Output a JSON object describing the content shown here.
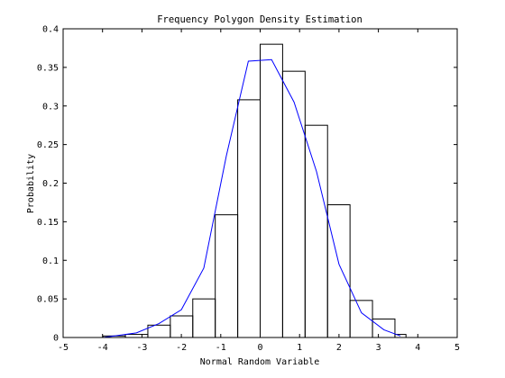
{
  "chart_data": {
    "type": "bar",
    "title": "Frequency Polygon Density Estimation",
    "xlabel": "Normal Random Variable",
    "ylabel": "Probability",
    "xlim": [
      -5,
      5
    ],
    "ylim": [
      0,
      0.4
    ],
    "xticks": [
      "-5",
      "-4",
      "-3",
      "-2",
      "-1",
      "0",
      "1",
      "2",
      "3",
      "4",
      "5"
    ],
    "yticks": [
      "0",
      "0.05",
      "0.1",
      "0.15",
      "0.2",
      "0.25",
      "0.3",
      "0.35",
      "0.4"
    ],
    "grid": false,
    "histogram": {
      "bin_edges": [
        -3.99,
        -3.42,
        -2.85,
        -2.28,
        -1.71,
        -1.14,
        -0.57,
        0.0,
        0.57,
        1.14,
        1.71,
        2.28,
        2.85,
        3.42
      ],
      "heights": [
        0.002,
        0.004,
        0.016,
        0.028,
        0.05,
        0.159,
        0.308,
        0.38,
        0.345,
        0.275,
        0.172,
        0.048,
        0.024,
        0.004
      ],
      "bin_starts": [
        -3.99,
        -3.42,
        -2.85,
        -2.28,
        -1.71,
        -1.14,
        -0.57,
        0.0,
        0.57,
        1.14,
        1.71,
        2.28,
        2.85,
        3.42
      ],
      "bin_ends": [
        -3.42,
        -2.85,
        -2.28,
        -1.71,
        -1.14,
        -0.57,
        0.0,
        0.57,
        1.14,
        1.71,
        2.28,
        2.85,
        3.42,
        3.7
      ]
    },
    "polygon": {
      "color": "#0000ff",
      "x": [
        -3.99,
        -3.7,
        -3.14,
        -2.57,
        -2.0,
        -1.43,
        -0.86,
        -0.3,
        0.29,
        0.86,
        1.43,
        2.0,
        2.57,
        3.14,
        3.56
      ],
      "y": [
        0.0,
        0.002,
        0.006,
        0.018,
        0.036,
        0.09,
        0.235,
        0.358,
        0.36,
        0.305,
        0.215,
        0.095,
        0.032,
        0.01,
        0.002
      ]
    }
  }
}
